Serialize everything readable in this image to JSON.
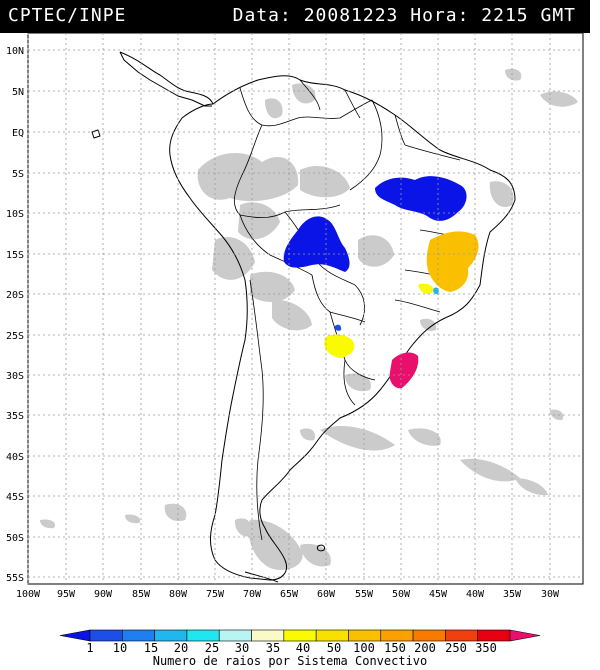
{
  "header": {
    "source": "CPTEC/INPE",
    "date_label": "Data:",
    "date_value": "20081223",
    "time_label": "Hora:",
    "time_value": "2215",
    "time_zone": "GMT"
  },
  "axes": {
    "lat_labels": [
      "10N",
      "5N",
      "EQ",
      "5S",
      "10S",
      "15S",
      "20S",
      "25S",
      "30S",
      "35S",
      "40S",
      "45S",
      "50S",
      "55S"
    ],
    "lon_labels": [
      "100W",
      "95W",
      "90W",
      "85W",
      "80W",
      "75W",
      "70W",
      "65W",
      "60W",
      "55W",
      "50W",
      "45W",
      "40W",
      "35W",
      "30W"
    ]
  },
  "colorbar": {
    "title": "Numero de raios por Sistema Convectivo",
    "ticks": [
      "1",
      "10",
      "15",
      "20",
      "25",
      "30",
      "35",
      "40",
      "50",
      "100",
      "150",
      "200",
      "250",
      "350"
    ],
    "colors": [
      "#0a14e6",
      "#1c4fe8",
      "#1e7ff0",
      "#20b7ee",
      "#20e6f0",
      "#b8f4f2",
      "#fafac8",
      "#fafa00",
      "#fae000",
      "#fac000",
      "#faa000",
      "#fa7a00",
      "#f04010",
      "#e80010",
      "#e8106c"
    ]
  },
  "colors": {
    "land": "#ffffff",
    "cloud": "#c8c8c8",
    "grid": "#9a9a9a"
  }
}
